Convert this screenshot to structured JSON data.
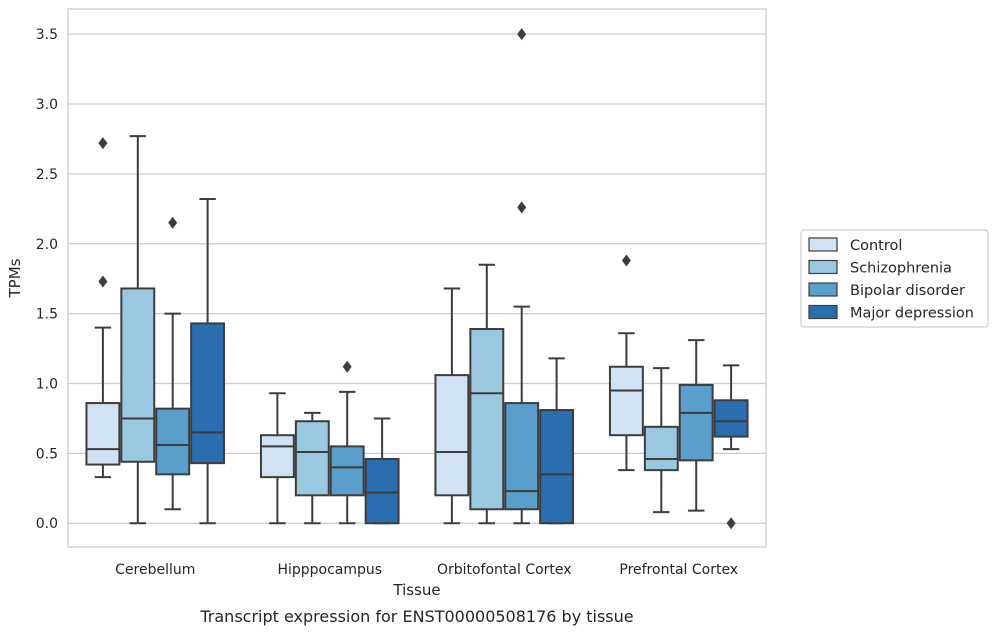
{
  "chart_data": {
    "type": "box",
    "xlabel": "Tissue",
    "ylabel": "TPMs",
    "caption": "Transcript expression for ENST00000508176 by tissue",
    "ylim": [
      -0.17,
      3.68
    ],
    "yticks": [
      "0.0",
      "0.5",
      "1.0",
      "1.5",
      "2.0",
      "2.5",
      "3.0",
      "3.5"
    ],
    "grid": "horizontal",
    "legend_position": "right",
    "categories": [
      "Cerebellum",
      "Hipppocampus",
      "Orbitofontal Cortex",
      "Prefrontal Cortex"
    ],
    "series": [
      {
        "name": "Control",
        "color": "#d1e2f2",
        "boxes": [
          {
            "whislo": 0.33,
            "q1": 0.42,
            "med": 0.53,
            "q3": 0.86,
            "whishi": 1.4,
            "fliers": [
              1.73,
              2.72
            ]
          },
          {
            "whislo": 0.0,
            "q1": 0.33,
            "med": 0.55,
            "q3": 0.63,
            "whishi": 0.93,
            "fliers": []
          },
          {
            "whislo": 0.0,
            "q1": 0.2,
            "med": 0.51,
            "q3": 1.06,
            "whishi": 1.68,
            "fliers": []
          },
          {
            "whislo": 0.38,
            "q1": 0.63,
            "med": 0.95,
            "q3": 1.12,
            "whishi": 1.36,
            "fliers": [
              1.88
            ]
          }
        ]
      },
      {
        "name": "Schizophrenia",
        "color": "#9ac8e0",
        "boxes": [
          {
            "whislo": 0.0,
            "q1": 0.44,
            "med": 0.75,
            "q3": 1.68,
            "whishi": 2.77,
            "fliers": []
          },
          {
            "whislo": 0.0,
            "q1": 0.2,
            "med": 0.51,
            "q3": 0.73,
            "whishi": 0.79,
            "fliers": []
          },
          {
            "whislo": 0.0,
            "q1": 0.1,
            "med": 0.93,
            "q3": 1.39,
            "whishi": 1.85,
            "fliers": []
          },
          {
            "whislo": 0.08,
            "q1": 0.38,
            "med": 0.46,
            "q3": 0.69,
            "whishi": 1.11,
            "fliers": []
          }
        ]
      },
      {
        "name": "Bipolar disorder",
        "color": "#5a9fcb",
        "boxes": [
          {
            "whislo": 0.1,
            "q1": 0.35,
            "med": 0.56,
            "q3": 0.82,
            "whishi": 1.5,
            "fliers": [
              2.15
            ]
          },
          {
            "whislo": 0.0,
            "q1": 0.2,
            "med": 0.4,
            "q3": 0.55,
            "whishi": 0.94,
            "fliers": [
              1.12
            ]
          },
          {
            "whislo": 0.0,
            "q1": 0.1,
            "med": 0.23,
            "q3": 0.86,
            "whishi": 1.55,
            "fliers": [
              2.26,
              3.5
            ]
          },
          {
            "whislo": 0.09,
            "q1": 0.45,
            "med": 0.79,
            "q3": 0.99,
            "whishi": 1.31,
            "fliers": []
          }
        ]
      },
      {
        "name": "Major depression",
        "color": "#2a6eaf",
        "boxes": [
          {
            "whislo": 0.0,
            "q1": 0.43,
            "med": 0.65,
            "q3": 1.43,
            "whishi": 2.32,
            "fliers": []
          },
          {
            "whislo": 0.0,
            "q1": 0.0,
            "med": 0.22,
            "q3": 0.46,
            "whishi": 0.75,
            "fliers": []
          },
          {
            "whislo": 0.0,
            "q1": 0.0,
            "med": 0.35,
            "q3": 0.81,
            "whishi": 1.18,
            "fliers": []
          },
          {
            "whislo": 0.53,
            "q1": 0.62,
            "med": 0.73,
            "q3": 0.88,
            "whishi": 1.13,
            "fliers": [
              0.0
            ]
          }
        ]
      }
    ]
  }
}
